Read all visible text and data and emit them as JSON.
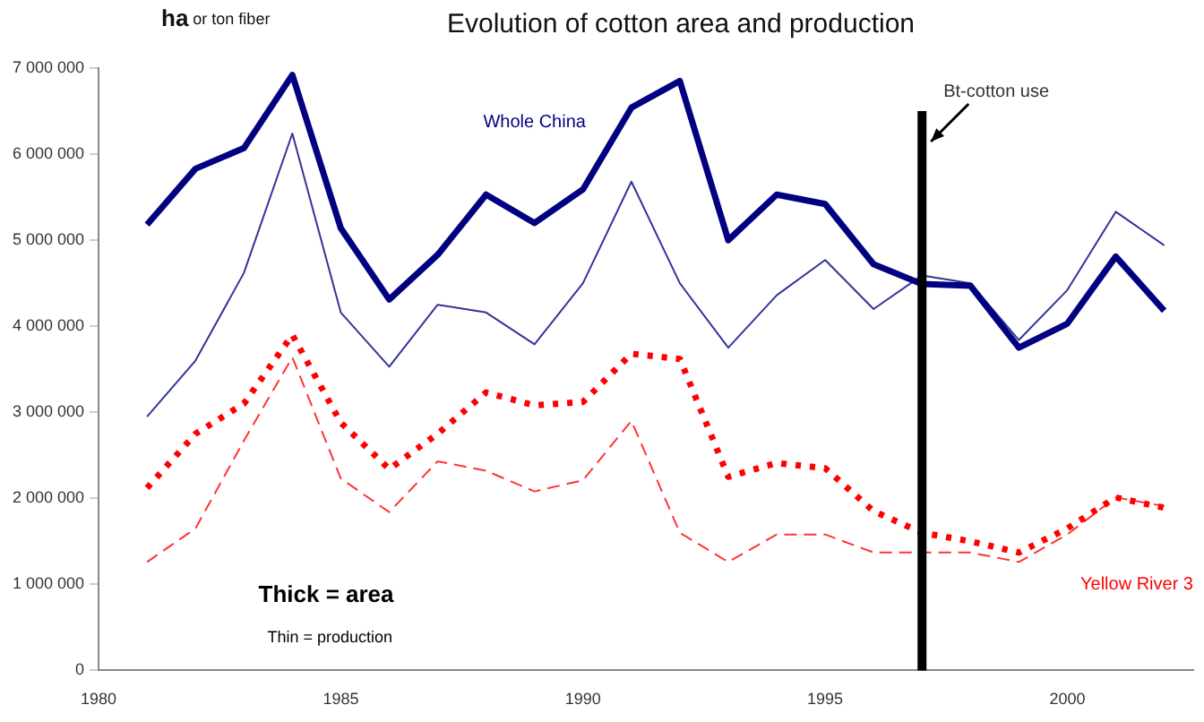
{
  "chart_data": {
    "type": "line",
    "title": "Evolution of cotton area and production",
    "ylabel": "ha or ton fiber",
    "x": [
      1981,
      1982,
      1983,
      1984,
      1985,
      1986,
      1987,
      1988,
      1989,
      1990,
      1991,
      1992,
      1993,
      1994,
      1995,
      1996,
      1997,
      1998,
      1999,
      2000,
      2001,
      2002
    ],
    "series": [
      {
        "name": "Whole China",
        "color": "#000080",
        "line_style": "solid",
        "values": [
          5180000,
          5830000,
          6070000,
          6920000,
          5140000,
          4310000,
          4830000,
          5530000,
          5200000,
          5590000,
          6540000,
          6850000,
          5000000,
          5530000,
          5420000,
          4720000,
          4490000,
          4470000,
          3750000,
          4030000,
          4810000,
          4180000
        ]
      },
      {
        "color": "#333399",
        "line_style": "solid",
        "values": [
          2950000,
          3600000,
          4620000,
          6240000,
          4160000,
          3530000,
          4250000,
          4160000,
          3790000,
          4500000,
          5680000,
          4500000,
          3750000,
          4360000,
          4770000,
          4200000,
          4590000,
          4500000,
          3840000,
          4420000,
          5330000,
          4940000
        ]
      },
      {
        "name": "Yellow River 3",
        "color": "#ff0000",
        "line_style": "dotted",
        "values": [
          2120000,
          2750000,
          3100000,
          3900000,
          2880000,
          2340000,
          2750000,
          3230000,
          3080000,
          3120000,
          3680000,
          3620000,
          2250000,
          2410000,
          2350000,
          1850000,
          1600000,
          1500000,
          1370000,
          1650000,
          2010000,
          1890000
        ]
      },
      {
        "color": "#ff3333",
        "line_style": "dashed",
        "values": [
          1260000,
          1650000,
          2670000,
          3640000,
          2230000,
          1840000,
          2430000,
          2320000,
          2080000,
          2210000,
          2900000,
          1600000,
          1260000,
          1580000,
          1580000,
          1370000,
          1370000,
          1370000,
          1260000,
          1580000,
          2010000,
          1910000
        ]
      }
    ],
    "xlim": [
      1980,
      2002.6
    ],
    "xticks": [
      1980,
      1985,
      1990,
      1995,
      2000
    ],
    "ylim": [
      0,
      7000000
    ],
    "yticks": [
      {
        "value": 0,
        "label": "0"
      },
      {
        "value": 1000000,
        "label": "1 000 000"
      },
      {
        "value": 2000000,
        "label": "2 000 000"
      },
      {
        "value": 3000000,
        "label": "3 000 000"
      },
      {
        "value": 4000000,
        "label": "4 000 000"
      },
      {
        "value": 5000000,
        "label": "5 000 000"
      },
      {
        "value": 6000000,
        "label": "6 000 000"
      },
      {
        "value": 7000000,
        "label": "7 000 000"
      }
    ],
    "ref_lines": [
      {
        "axis": "x",
        "value": 1997,
        "label": "Bt-cotton use",
        "color": "#000000"
      }
    ],
    "annotations": [
      "Thick = area",
      "Thin = production"
    ],
    "grid": false,
    "legend": false,
    "marker": "none"
  }
}
